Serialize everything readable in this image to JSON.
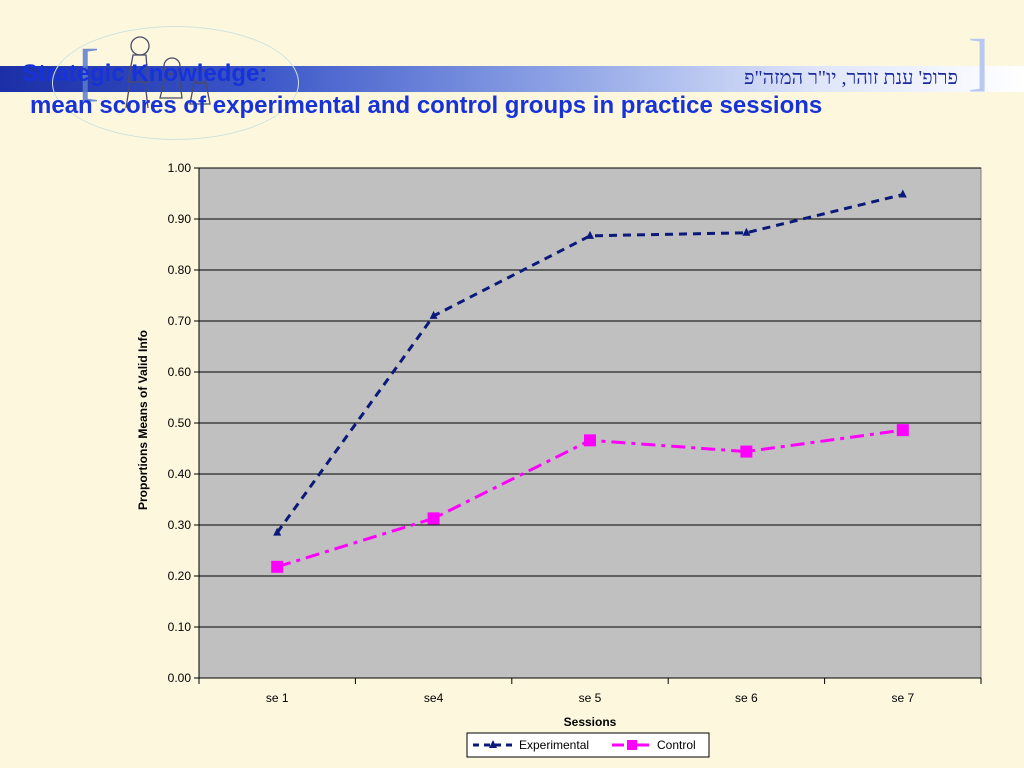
{
  "slide": {
    "title_line1": "Strategic Knowledge:",
    "title_line2": "mean scores of experimental and control groups in practice sessions",
    "author_hebrew": "פרופ' ענת זוהר, יו\"ר המזה\"פ"
  },
  "colors": {
    "background": "#fdf8dd",
    "title": "#1732d8",
    "plot_area": "#c0c0c0",
    "experimental": "#0b1a7a",
    "control": "#ff00ff"
  },
  "chart_data": {
    "type": "line",
    "categories": [
      "se 1",
      "se4",
      "se 5",
      "se 6",
      "se 7"
    ],
    "series": [
      {
        "name": "Experimental",
        "values": [
          0.285,
          0.71,
          0.867,
          0.873,
          0.948
        ],
        "marker": "triangle",
        "line_style": "dashed"
      },
      {
        "name": "Control",
        "values": [
          0.218,
          0.313,
          0.466,
          0.444,
          0.486
        ],
        "marker": "square",
        "line_style": "dash-dot"
      }
    ],
    "xlabel": "Sessions",
    "ylabel": "Proportions Means of Valid Info",
    "ylim": [
      0,
      1
    ],
    "yticks": [
      "0.00",
      "0.10",
      "0.20",
      "0.30",
      "0.40",
      "0.50",
      "0.60",
      "0.70",
      "0.80",
      "0.90",
      "1.00"
    ],
    "grid": true,
    "legend_position": "bottom"
  }
}
